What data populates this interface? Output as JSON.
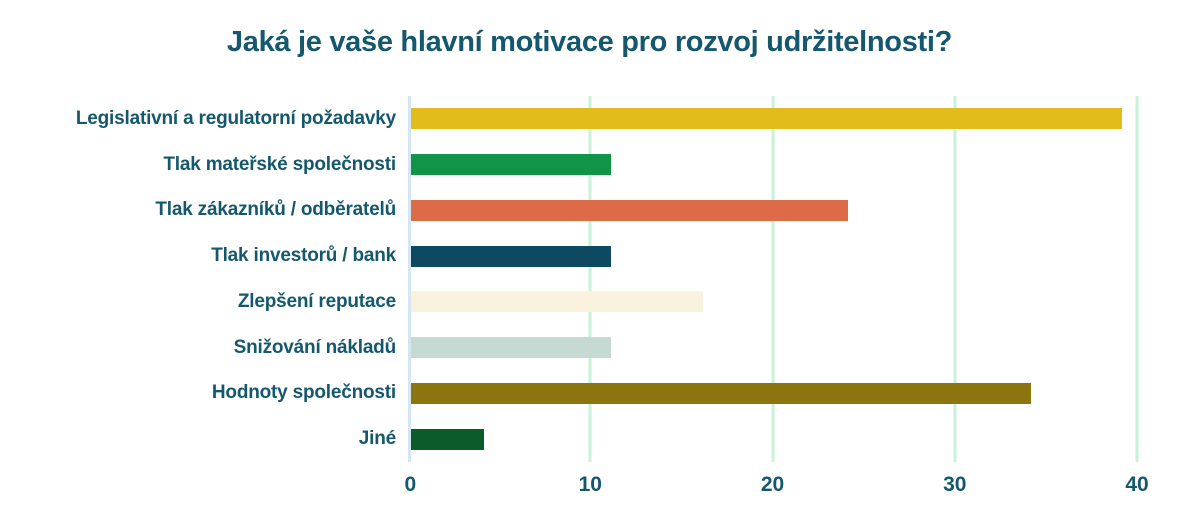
{
  "page": {
    "background_color": "#ffffff",
    "text_color": "#15586d"
  },
  "chart_data": {
    "type": "bar",
    "orientation": "horizontal",
    "title": "Jaká je vaše hlavní motivace pro rozvoj udržitelnosti?",
    "categories": [
      "Legislativní a regulatorní požadavky",
      "Tlak mateřské společnosti",
      "Tlak zákazníků / odběratelů",
      "Tlak investorů / bank",
      "Zlepšení reputace",
      "Snižování nákladů",
      "Hodnoty společnosti",
      "Jiné"
    ],
    "values": [
      39,
      11,
      24,
      11,
      16,
      11,
      34,
      4
    ],
    "bar_colors": [
      "#e2bc1a",
      "#0f9448",
      "#dd6b47",
      "#0d4a61",
      "#f9f2df",
      "#c6d9d2",
      "#8c740f",
      "#0b5b2b"
    ],
    "xlabel": "",
    "ylabel": "",
    "xlim": [
      0,
      40
    ],
    "xticks": [
      0,
      10,
      20,
      30,
      40
    ],
    "grid": true,
    "legend": false,
    "gridline_color": "#c8f2d8",
    "zero_axis_color": "#d3e7f3",
    "label_color": "#15586d"
  }
}
